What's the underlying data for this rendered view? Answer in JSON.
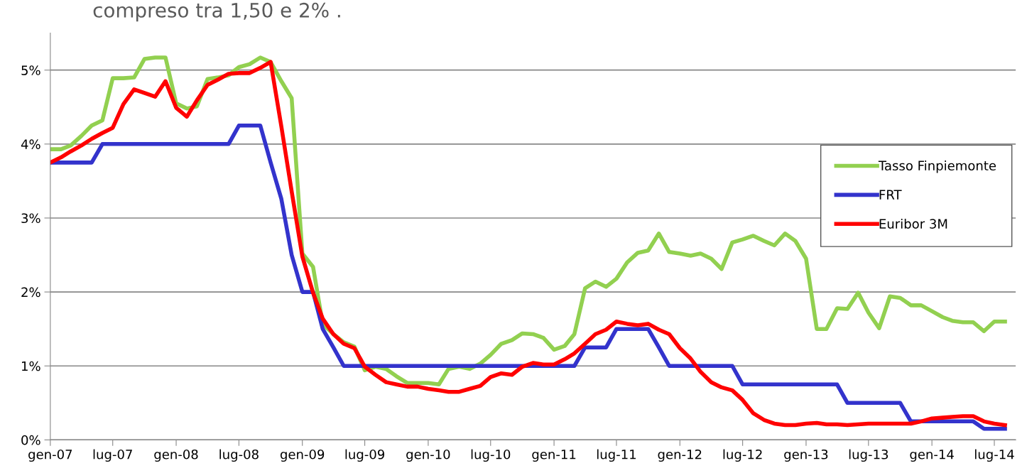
{
  "chart_data": {
    "type": "line",
    "title": "compreso tra 1,50 e 2% .",
    "x": [
      "2007-01",
      "2007-02",
      "2007-03",
      "2007-04",
      "2007-05",
      "2007-06",
      "2007-07",
      "2007-08",
      "2007-09",
      "2007-10",
      "2007-11",
      "2007-12",
      "2008-01",
      "2008-02",
      "2008-03",
      "2008-04",
      "2008-05",
      "2008-06",
      "2008-07",
      "2008-08",
      "2008-09",
      "2008-10",
      "2008-11",
      "2008-12",
      "2009-01",
      "2009-02",
      "2009-03",
      "2009-04",
      "2009-05",
      "2009-06",
      "2009-07",
      "2009-08",
      "2009-09",
      "2009-10",
      "2009-11",
      "2009-12",
      "2010-01",
      "2010-02",
      "2010-03",
      "2010-04",
      "2010-05",
      "2010-06",
      "2010-07",
      "2010-08",
      "2010-09",
      "2010-10",
      "2010-11",
      "2010-12",
      "2011-01",
      "2011-02",
      "2011-03",
      "2011-04",
      "2011-05",
      "2011-06",
      "2011-07",
      "2011-08",
      "2011-09",
      "2011-10",
      "2011-11",
      "2011-12",
      "2012-01",
      "2012-02",
      "2012-03",
      "2012-04",
      "2012-05",
      "2012-06",
      "2012-07",
      "2012-08",
      "2012-09",
      "2012-10",
      "2012-11",
      "2012-12",
      "2013-01",
      "2013-02",
      "2013-03",
      "2013-04",
      "2013-05",
      "2013-06",
      "2013-07",
      "2013-08",
      "2013-09",
      "2013-10",
      "2013-11",
      "2013-12",
      "2014-01",
      "2014-02",
      "2014-03",
      "2014-04",
      "2014-05",
      "2014-06",
      "2014-07",
      "2014-08"
    ],
    "series": [
      {
        "name": "Tasso Finpiemonte",
        "color": "#92d050",
        "values": [
          3.93,
          3.93,
          3.98,
          4.11,
          4.25,
          4.32,
          4.89,
          4.89,
          4.9,
          5.15,
          5.17,
          5.17,
          4.55,
          4.48,
          4.51,
          4.88,
          4.9,
          4.93,
          5.04,
          5.08,
          5.17,
          5.11,
          4.85,
          4.62,
          2.52,
          2.34,
          1.57,
          1.43,
          1.32,
          1.26,
          0.94,
          0.99,
          0.96,
          0.86,
          0.77,
          0.77,
          0.77,
          0.75,
          0.96,
          0.99,
          0.96,
          1.03,
          1.15,
          1.3,
          1.35,
          1.44,
          1.43,
          1.38,
          1.22,
          1.27,
          1.43,
          2.05,
          2.14,
          2.07,
          2.18,
          2.4,
          2.53,
          2.56,
          2.79,
          2.54,
          2.52,
          2.49,
          2.52,
          2.45,
          2.31,
          2.67,
          2.71,
          2.76,
          2.69,
          2.63,
          2.79,
          2.69,
          2.45,
          1.5,
          1.5,
          1.78,
          1.77,
          1.99,
          1.72,
          1.51,
          1.94,
          1.92,
          1.82,
          1.82,
          1.74,
          1.66,
          1.61,
          1.59,
          1.59,
          1.47,
          1.6,
          1.6
        ]
      },
      {
        "name": "FRT",
        "color": "#3333cc",
        "values": [
          3.75,
          3.75,
          3.75,
          3.75,
          3.75,
          4.0,
          4.0,
          4.0,
          4.0,
          4.0,
          4.0,
          4.0,
          4.0,
          4.0,
          4.0,
          4.0,
          4.0,
          4.0,
          4.25,
          4.25,
          4.25,
          3.75,
          3.26,
          2.5,
          2.0,
          2.0,
          1.5,
          1.25,
          1.0,
          1.0,
          1.0,
          1.0,
          1.0,
          1.0,
          1.0,
          1.0,
          1.0,
          1.0,
          1.0,
          1.0,
          1.0,
          1.0,
          1.0,
          1.0,
          1.0,
          1.0,
          1.0,
          1.0,
          1.0,
          1.0,
          1.0,
          1.25,
          1.25,
          1.25,
          1.5,
          1.5,
          1.5,
          1.5,
          1.25,
          1.0,
          1.0,
          1.0,
          1.0,
          1.0,
          1.0,
          1.0,
          0.75,
          0.75,
          0.75,
          0.75,
          0.75,
          0.75,
          0.75,
          0.75,
          0.75,
          0.75,
          0.5,
          0.5,
          0.5,
          0.5,
          0.5,
          0.5,
          0.25,
          0.25,
          0.25,
          0.25,
          0.25,
          0.25,
          0.25,
          0.15,
          0.15,
          0.15
        ]
      },
      {
        "name": "Euribor 3M",
        "color": "#ff0000",
        "values": [
          3.75,
          3.82,
          3.9,
          3.98,
          4.07,
          4.15,
          4.22,
          4.54,
          4.74,
          4.69,
          4.64,
          4.85,
          4.49,
          4.37,
          4.59,
          4.8,
          4.87,
          4.95,
          4.96,
          4.96,
          5.03,
          5.11,
          4.24,
          3.36,
          2.48,
          1.99,
          1.64,
          1.43,
          1.3,
          1.24,
          0.99,
          0.88,
          0.78,
          0.75,
          0.72,
          0.72,
          0.69,
          0.67,
          0.65,
          0.65,
          0.69,
          0.73,
          0.85,
          0.9,
          0.88,
          0.99,
          1.04,
          1.02,
          1.02,
          1.09,
          1.17,
          1.3,
          1.43,
          1.49,
          1.6,
          1.57,
          1.55,
          1.57,
          1.49,
          1.43,
          1.24,
          1.1,
          0.92,
          0.78,
          0.71,
          0.67,
          0.54,
          0.36,
          0.27,
          0.22,
          0.2,
          0.2,
          0.22,
          0.23,
          0.21,
          0.21,
          0.2,
          0.21,
          0.22,
          0.22,
          0.22,
          0.22,
          0.22,
          0.25,
          0.29,
          0.3,
          0.31,
          0.32,
          0.32,
          0.25,
          0.22,
          0.2
        ]
      }
    ],
    "xlim": [
      "2007-01",
      "2014-09"
    ],
    "xticks": [
      {
        "value": "2007-01",
        "label": "gen-07"
      },
      {
        "value": "2007-07",
        "label": "lug-07"
      },
      {
        "value": "2008-01",
        "label": "gen-08"
      },
      {
        "value": "2008-07",
        "label": "lug-08"
      },
      {
        "value": "2009-01",
        "label": "gen-09"
      },
      {
        "value": "2009-07",
        "label": "lug-09"
      },
      {
        "value": "2010-01",
        "label": "gen-10"
      },
      {
        "value": "2010-07",
        "label": "lug-10"
      },
      {
        "value": "2011-01",
        "label": "gen-11"
      },
      {
        "value": "2011-07",
        "label": "lug-11"
      },
      {
        "value": "2012-01",
        "label": "gen-12"
      },
      {
        "value": "2012-07",
        "label": "lug-12"
      },
      {
        "value": "2013-01",
        "label": "gen-13"
      },
      {
        "value": "2013-07",
        "label": "lug-13"
      },
      {
        "value": "2014-01",
        "label": "gen-14"
      },
      {
        "value": "2014-07",
        "label": "lug-14"
      }
    ],
    "ylim": [
      0,
      5.5
    ],
    "yticks": [
      {
        "value": 0,
        "label": "0%"
      },
      {
        "value": 1,
        "label": "1%"
      },
      {
        "value": 2,
        "label": "2%"
      },
      {
        "value": 3,
        "label": "3%"
      },
      {
        "value": 4,
        "label": "4%"
      },
      {
        "value": 5,
        "label": "5%"
      }
    ],
    "grid": "y",
    "legend": "right",
    "marker": "none",
    "line_style": "solid"
  }
}
